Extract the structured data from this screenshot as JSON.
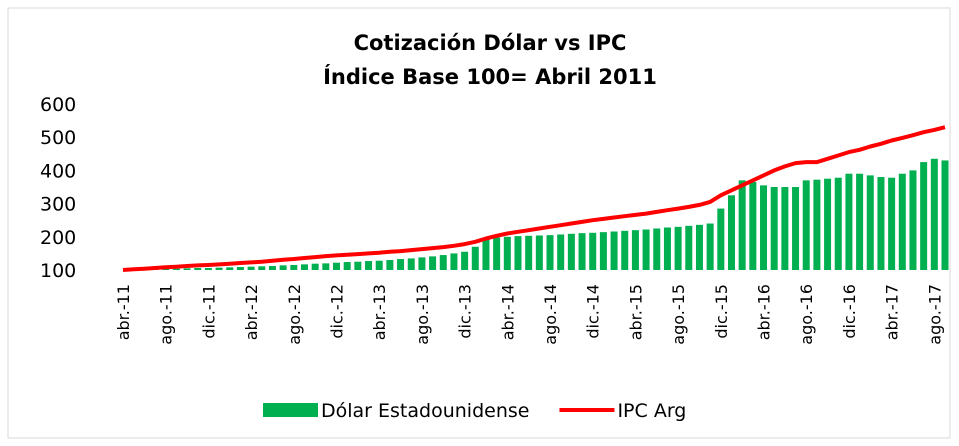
{
  "chart_data": {
    "type": "bar-line",
    "title": "Cotización Dólar vs IPC",
    "subtitle": "Índice Base 100= Abril 2011",
    "categories": [
      "abr.-11",
      null,
      null,
      null,
      "ago.-11",
      null,
      null,
      null,
      "dic.-11",
      null,
      null,
      null,
      "abr.-12",
      null,
      null,
      null,
      "ago.-12",
      null,
      null,
      null,
      "dic.-12",
      null,
      null,
      null,
      "abr.-13",
      null,
      null,
      null,
      "ago.-13",
      null,
      null,
      null,
      "dic.-13",
      null,
      null,
      null,
      "abr.-14",
      null,
      null,
      null,
      "ago.-14",
      null,
      null,
      null,
      "dic.-14",
      null,
      null,
      null,
      "abr.-15",
      null,
      null,
      null,
      "ago.-15",
      null,
      null,
      null,
      "dic.-15",
      null,
      null,
      null,
      "abr.-16",
      null,
      null,
      null,
      "ago.-16",
      null,
      null,
      null,
      "dic.-16",
      null,
      null,
      null,
      "abr.-17",
      null,
      null,
      null,
      "ago.-17",
      null
    ],
    "series": [
      {
        "name": "Dólar Estadounidense",
        "type": "bar",
        "color": "#00b050",
        "values": [
          100,
          101,
          102,
          102,
          103,
          104,
          105,
          106,
          106,
          107,
          108,
          109,
          110,
          111,
          112,
          114,
          115,
          117,
          119,
          120,
          122,
          124,
          125,
          127,
          128,
          130,
          133,
          135,
          138,
          141,
          145,
          150,
          155,
          170,
          195,
          198,
          200,
          202,
          203,
          204,
          205,
          207,
          209,
          211,
          212,
          214,
          216,
          218,
          220,
          222,
          225,
          228,
          230,
          233,
          236,
          240,
          285,
          325,
          370,
          365,
          355,
          350,
          350,
          350,
          370,
          372,
          375,
          378,
          390,
          390,
          385,
          380,
          378,
          390,
          400,
          425,
          435,
          430
        ]
      },
      {
        "name": "IPC Arg",
        "type": "line",
        "color": "#ff0000",
        "values": [
          100,
          102,
          104,
          106,
          108,
          110,
          112,
          114,
          115,
          117,
          119,
          121,
          123,
          125,
          128,
          131,
          133,
          136,
          139,
          142,
          144,
          146,
          148,
          150,
          152,
          155,
          157,
          160,
          163,
          166,
          169,
          173,
          178,
          185,
          195,
          203,
          210,
          215,
          220,
          225,
          230,
          235,
          240,
          245,
          250,
          254,
          258,
          262,
          266,
          270,
          275,
          280,
          285,
          290,
          296,
          305,
          325,
          340,
          355,
          370,
          385,
          400,
          412,
          422,
          425,
          425,
          435,
          445,
          455,
          462,
          472,
          480,
          490,
          498,
          506,
          515,
          522,
          530
        ]
      }
    ],
    "ylim": [
      100,
      600
    ],
    "yticks": [
      100,
      200,
      300,
      400,
      500,
      600
    ],
    "grid": false,
    "legend": "bottom"
  }
}
